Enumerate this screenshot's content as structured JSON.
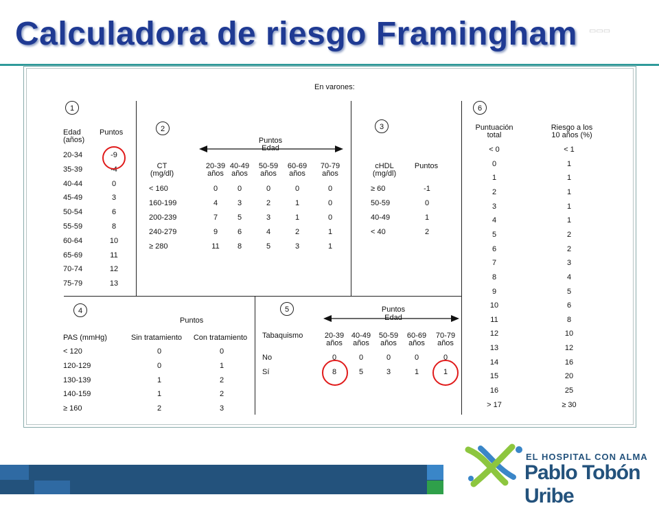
{
  "title": "Calculadora de riesgo Framingham",
  "header": "En varones:",
  "section_numbers": [
    "1",
    "2",
    "3",
    "4",
    "5",
    "6"
  ],
  "s1": {
    "h_edad": "Edad",
    "h_anos": "(años)",
    "h_puntos": "Puntos",
    "rows": [
      [
        "20-34",
        "-9"
      ],
      [
        "35-39",
        "-4"
      ],
      [
        "40-44",
        "0"
      ],
      [
        "45-49",
        "3"
      ],
      [
        "50-54",
        "6"
      ],
      [
        "55-59",
        "8"
      ],
      [
        "60-64",
        "10"
      ],
      [
        "65-69",
        "11"
      ],
      [
        "70-74",
        "12"
      ],
      [
        "75-79",
        "13"
      ]
    ]
  },
  "s2": {
    "puntos": "Puntos",
    "edad": "Edad",
    "h_ct": "CT",
    "h_unit": "(mg/dl)",
    "ages_top": [
      "20-39",
      "40-49",
      "50-59",
      "60-69",
      "70-79"
    ],
    "ages_bottom": [
      "años",
      "años",
      "años",
      "años",
      "años"
    ],
    "rows": [
      [
        "< 160",
        "0",
        "0",
        "0",
        "0",
        "0"
      ],
      [
        "160-199",
        "4",
        "3",
        "2",
        "1",
        "0"
      ],
      [
        "200-239",
        "7",
        "5",
        "3",
        "1",
        "0"
      ],
      [
        "240-279",
        "9",
        "6",
        "4",
        "2",
        "1"
      ],
      [
        "≥ 280",
        "11",
        "8",
        "5",
        "3",
        "1"
      ]
    ]
  },
  "s3": {
    "h_chdl": "cHDL",
    "h_unit": "(mg/dl)",
    "h_puntos": "Puntos",
    "rows": [
      [
        "≥ 60",
        "-1"
      ],
      [
        "50-59",
        "0"
      ],
      [
        "40-49",
        "1"
      ],
      [
        "< 40",
        "2"
      ]
    ]
  },
  "s4": {
    "puntos": "Puntos",
    "h_pas": "PAS (mmHg)",
    "h_sin": "Sin tratamiento",
    "h_con": "Con tratamiento",
    "rows": [
      [
        "< 120",
        "0",
        "0"
      ],
      [
        "120-129",
        "0",
        "1"
      ],
      [
        "130-139",
        "1",
        "2"
      ],
      [
        "140-159",
        "1",
        "2"
      ],
      [
        "≥ 160",
        "2",
        "3"
      ]
    ]
  },
  "s5": {
    "puntos": "Puntos",
    "edad": "Edad",
    "h_tab": "Tabaquismo",
    "ages_top": [
      "20-39",
      "40-49",
      "50-59",
      "60-69",
      "70-79"
    ],
    "ages_bottom": [
      "años",
      "años",
      "años",
      "años",
      "años"
    ],
    "rows": [
      [
        "No",
        "0",
        "0",
        "0",
        "0",
        "0"
      ],
      [
        "Sí",
        "8",
        "5",
        "3",
        "1",
        "1"
      ]
    ]
  },
  "s6": {
    "h_p1": "Puntuación",
    "h_p2": "total",
    "h_r1": "Riesgo a los",
    "h_r2": "10 años (%)",
    "rows": [
      [
        "< 0",
        "< 1"
      ],
      [
        "0",
        "1"
      ],
      [
        "1",
        "1"
      ],
      [
        "2",
        "1"
      ],
      [
        "3",
        "1"
      ],
      [
        "4",
        "1"
      ],
      [
        "5",
        "2"
      ],
      [
        "6",
        "2"
      ],
      [
        "7",
        "3"
      ],
      [
        "8",
        "4"
      ],
      [
        "9",
        "5"
      ],
      [
        "10",
        "6"
      ],
      [
        "11",
        "8"
      ],
      [
        "12",
        "10"
      ],
      [
        "13",
        "12"
      ],
      [
        "14",
        "16"
      ],
      [
        "15",
        "20"
      ],
      [
        "16",
        "25"
      ],
      [
        "> 17",
        "≥ 30"
      ]
    ]
  },
  "logo": {
    "line1": "EL HOSPITAL CON ALMA",
    "line2": "Pablo Tobón Uribe"
  },
  "colors": {
    "title": "#1f3a93",
    "ring": "#e01a1a",
    "bar": "#23527c",
    "logo_green": "#8dc63f",
    "logo_blue": "#3a86c8"
  }
}
